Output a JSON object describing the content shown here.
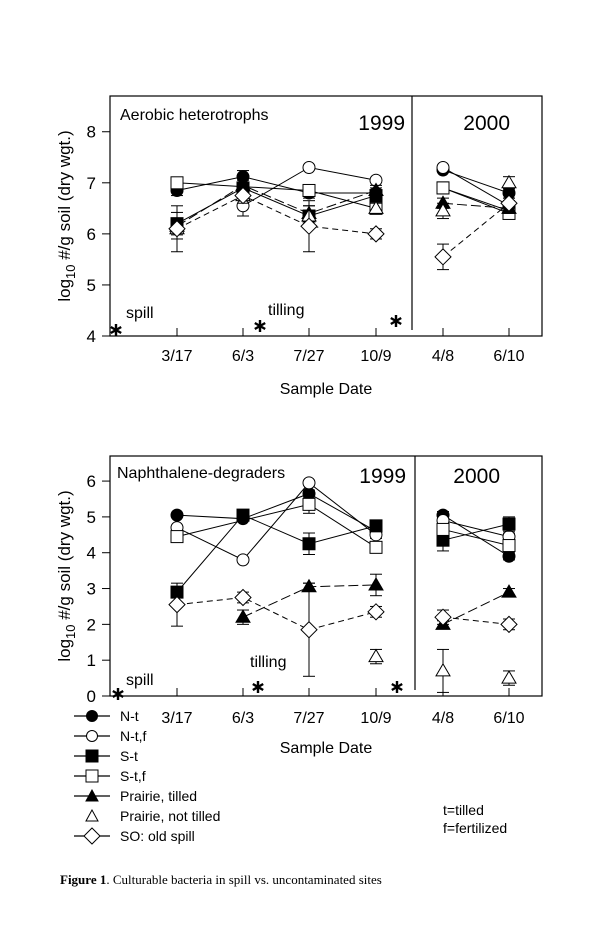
{
  "colors": {
    "ink": "#000000",
    "background": "#ffffff"
  },
  "caption": {
    "label": "Figure 1",
    "text": ". Culturable bacteria in spill vs. uncontaminated sites"
  },
  "legend": {
    "items": [
      {
        "label": "N-t",
        "marker": "filled-circle",
        "line": "solid"
      },
      {
        "label": "N-t,f",
        "marker": "open-circle",
        "line": "solid"
      },
      {
        "label": "S-t",
        "marker": "filled-square",
        "line": "solid"
      },
      {
        "label": "S-t,f",
        "marker": "open-square",
        "line": "solid"
      },
      {
        "label": "Prairie, tilled",
        "marker": "filled-triangle",
        "line": "solid"
      },
      {
        "label": "Prairie, not tilled",
        "marker": "open-triangle",
        "line": "none"
      },
      {
        "label": "SO: old spill",
        "marker": "open-diamond",
        "line": "solid"
      }
    ],
    "notes": [
      "t=tilled",
      "f=fertilized"
    ]
  },
  "chart_data": [
    {
      "type": "line",
      "title": "Aerobic heterotrophs",
      "xlabel": "Sample Date",
      "ylabel": "log10 #/g soil (dry wgt.)",
      "ylabel_parts": {
        "pre": "log",
        "sub": "10",
        "post": " #/g soil (dry wgt.)"
      },
      "ylim": [
        4,
        8.7
      ],
      "yticks": [
        4,
        5,
        6,
        7,
        8
      ],
      "categories": [
        "3/17",
        "6/3",
        "7/27",
        "10/9",
        "4/8",
        "6/10"
      ],
      "periods": [
        {
          "label": "1999",
          "categories": [
            "3/17",
            "6/3",
            "7/27",
            "10/9"
          ]
        },
        {
          "label": "2000",
          "categories": [
            "4/8",
            "6/10"
          ]
        }
      ],
      "annotations": [
        {
          "text": "spill",
          "at": "before 3/17"
        },
        {
          "text": "tilling",
          "at": "between 6/3 and 7/27"
        },
        {
          "text": "*",
          "at": "after 10/9"
        }
      ],
      "series": [
        {
          "name": "N-t",
          "values": [
            6.85,
            7.12,
            6.8,
            6.8,
            7.25,
            6.8
          ],
          "err": [
            0.1,
            0.12,
            0.1,
            0.1,
            0.05,
            0.1
          ]
        },
        {
          "name": "N-t,f",
          "values": [
            null,
            6.55,
            7.3,
            7.05,
            7.3,
            6.55
          ],
          "err": [
            0,
            0.2,
            0.05,
            0.05,
            0.05,
            0.1
          ]
        },
        {
          "name": "S-t",
          "values": [
            6.2,
            6.9,
            6.35,
            6.75,
            6.9,
            6.45
          ],
          "err": [
            0.22,
            0.1,
            0.1,
            0.1,
            0.1,
            0.1
          ]
        },
        {
          "name": "S-t,f",
          "values": [
            7.0,
            null,
            6.85,
            6.5,
            6.9,
            6.4
          ],
          "err": [
            0.05,
            0,
            0.05,
            0.1,
            0.1,
            0.1
          ]
        },
        {
          "name": "Prairie, tilled",
          "values": [
            6.15,
            6.95,
            6.4,
            6.85,
            6.6,
            6.5
          ],
          "err": [
            0.1,
            0.1,
            0.15,
            0.1,
            0.1,
            0.1
          ]
        },
        {
          "name": "Prairie, not tilled",
          "values": [
            6.1,
            6.75,
            6.35,
            6.5,
            6.45,
            7.0
          ],
          "err": [
            0.2,
            0.1,
            0.2,
            0.1,
            0.15,
            0.12
          ]
        },
        {
          "name": "SO: old spill",
          "values": [
            6.1,
            6.75,
            6.15,
            6.0,
            5.55,
            6.6
          ],
          "err": [
            0.45,
            0.15,
            0.5,
            0.1,
            0.25,
            0.1
          ]
        }
      ]
    },
    {
      "type": "line",
      "title": "Naphthalene-degraders",
      "xlabel": "Sample Date",
      "ylabel": "log10 #/g soil (dry wgt.)",
      "ylabel_parts": {
        "pre": "log",
        "sub": "10",
        "post": " #/g soil (dry wgt.)"
      },
      "ylim": [
        0,
        6.7
      ],
      "yticks": [
        0,
        1,
        2,
        3,
        4,
        5,
        6
      ],
      "categories": [
        "3/17",
        "6/3",
        "7/27",
        "10/9",
        "4/8",
        "6/10"
      ],
      "periods": [
        {
          "label": "1999",
          "categories": [
            "3/17",
            "6/3",
            "7/27",
            "10/9"
          ]
        },
        {
          "label": "2000",
          "categories": [
            "4/8",
            "6/10"
          ]
        }
      ],
      "annotations": [
        {
          "text": "spill",
          "at": "before 3/17"
        },
        {
          "text": "tilling",
          "at": "between 6/3 and 7/27"
        },
        {
          "text": "*",
          "at": "after 10/9"
        }
      ],
      "series": [
        {
          "name": "N-t",
          "values": [
            5.05,
            4.95,
            5.65,
            4.6,
            5.05,
            3.9
          ],
          "err": [
            0.05,
            0.05,
            0.1,
            0.1,
            0.1,
            0.1
          ]
        },
        {
          "name": "N-t,f",
          "values": [
            4.7,
            3.8,
            5.95,
            4.5,
            4.9,
            4.45
          ],
          "err": [
            0.05,
            0.05,
            0.05,
            0.1,
            0.1,
            0.1
          ]
        },
        {
          "name": "S-t",
          "values": [
            2.9,
            5.05,
            4.25,
            4.75,
            4.35,
            4.8
          ],
          "err": [
            0.05,
            0.1,
            0.3,
            0.1,
            0.3,
            0.2
          ]
        },
        {
          "name": "S-t,f",
          "values": [
            4.45,
            null,
            5.35,
            4.15,
            4.65,
            4.2
          ],
          "err": [
            0.05,
            0,
            0.25,
            0.1,
            0.1,
            0.1
          ]
        },
        {
          "name": "Prairie, tilled",
          "values": [
            null,
            2.2,
            3.05,
            3.1,
            2.0,
            2.9
          ],
          "err": [
            0,
            0.2,
            0.1,
            0.3,
            0.1,
            0.1
          ]
        },
        {
          "name": "Prairie, not tilled",
          "values": [
            null,
            null,
            null,
            1.1,
            0.7,
            0.5
          ],
          "err": [
            0,
            0,
            0,
            0.2,
            0.6,
            0.2
          ]
        },
        {
          "name": "SO: old spill",
          "values": [
            2.55,
            2.75,
            1.85,
            2.35,
            2.2,
            2.0
          ],
          "err": [
            0.6,
            0.15,
            1.3,
            0.15,
            0.2,
            0.15
          ]
        }
      ]
    }
  ]
}
